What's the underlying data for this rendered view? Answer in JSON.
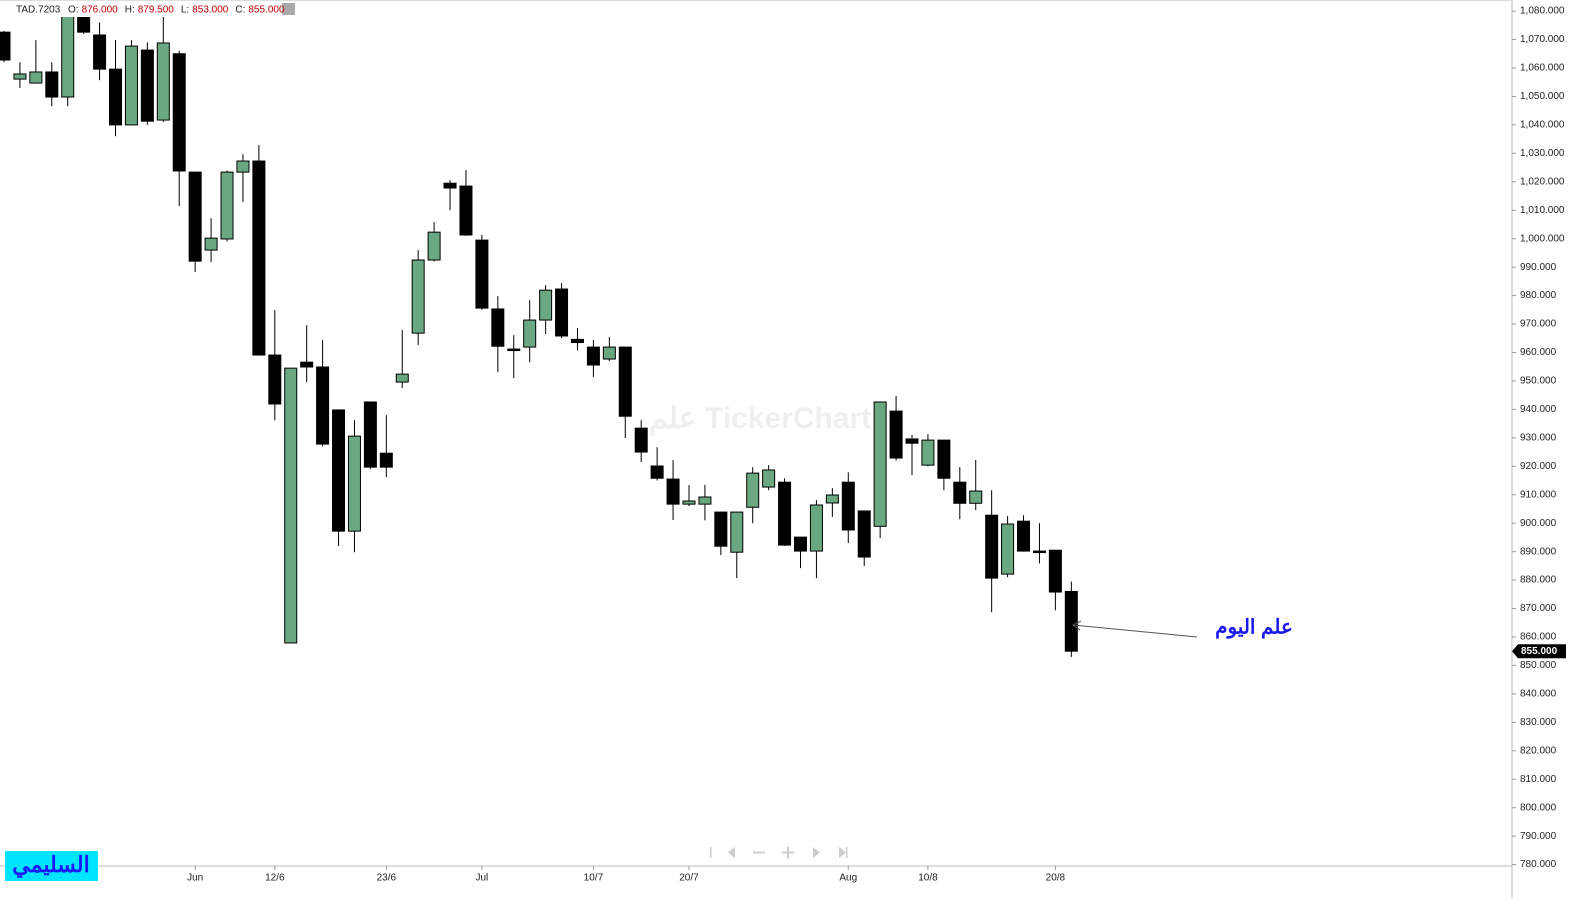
{
  "chart_data": {
    "type": "candlestick",
    "symbol": "TAD.7203",
    "ohlc_header": [
      {
        "key": "O:",
        "label": "876.000"
      },
      {
        "key": "H:",
        "label": "879.500"
      },
      {
        "key": "L:",
        "label": "853.000"
      },
      {
        "key": "C:",
        "label": "855.000"
      }
    ],
    "last_price_label": "855.000",
    "watermark": "علم TickerChart",
    "annotation": "علم اليوم",
    "badge": "السليمي",
    "up_color": "#6aa882",
    "down_color": "#000000",
    "ylim": [
      779.5,
      1083.9
    ],
    "yticks": [
      {
        "value": 780,
        "label": "780.000"
      },
      {
        "value": 790,
        "label": "790.000"
      },
      {
        "value": 800,
        "label": "800.000"
      },
      {
        "value": 810,
        "label": "810.000"
      },
      {
        "value": 820,
        "label": "820.000"
      },
      {
        "value": 830,
        "label": "830.000"
      },
      {
        "value": 840,
        "label": "840.000"
      },
      {
        "value": 850,
        "label": "850.000"
      },
      {
        "value": 860,
        "label": "860.000"
      },
      {
        "value": 870,
        "label": "870.000"
      },
      {
        "value": 880,
        "label": "880.000"
      },
      {
        "value": 890,
        "label": "890.000"
      },
      {
        "value": 900,
        "label": "900.000"
      },
      {
        "value": 910,
        "label": "910.000"
      },
      {
        "value": 920,
        "label": "920.000"
      },
      {
        "value": 930,
        "label": "930.000"
      },
      {
        "value": 940,
        "label": "940.000"
      },
      {
        "value": 950,
        "label": "950.000"
      },
      {
        "value": 960,
        "label": "960.000"
      },
      {
        "value": 970,
        "label": "970.000"
      },
      {
        "value": 980,
        "label": "980.000"
      },
      {
        "value": 990,
        "label": "990.000"
      },
      {
        "value": 1000,
        "label": "1,000.000"
      },
      {
        "value": 1010,
        "label": "1,010.000"
      },
      {
        "value": 1020,
        "label": "1,020.000"
      },
      {
        "value": 1030,
        "label": "1,030.000"
      },
      {
        "value": 1040,
        "label": "1,040.000"
      },
      {
        "value": 1050,
        "label": "1,050.000"
      },
      {
        "value": 1060,
        "label": "1,060.000"
      },
      {
        "value": 1070,
        "label": "1,070.000"
      },
      {
        "value": 1080,
        "label": "1,080.000"
      }
    ],
    "categories": [
      null,
      null,
      null,
      null,
      null,
      null,
      null,
      null,
      null,
      null,
      null,
      null,
      "Jun",
      null,
      null,
      null,
      null,
      "12/6",
      null,
      null,
      null,
      null,
      null,
      null,
      "23/6",
      null,
      null,
      null,
      null,
      null,
      "Jul",
      null,
      null,
      null,
      null,
      null,
      null,
      "10/7",
      null,
      null,
      null,
      null,
      null,
      "20/7",
      null,
      null,
      null,
      null,
      null,
      null,
      null,
      null,
      null,
      "Aug",
      null,
      null,
      null,
      null,
      "10/8",
      null,
      null,
      null,
      null,
      null,
      null,
      null,
      "20/8",
      null
    ],
    "open": [
      1072.6,
      1056.1,
      1054.7,
      1058.6,
      1049.8,
      1079.6,
      1071.6,
      1059.6,
      1040,
      1066.3,
      1041.7,
      1065,
      1023.4,
      996,
      999.9,
      1023.4,
      1027.3,
      959.1,
      857.9,
      956.6,
      954.9,
      939.8,
      897.2,
      942.6,
      924.6,
      949.6,
      966.8,
      992.5,
      1019.5,
      1018.5,
      999.5,
      975.3,
      961.2,
      961.9,
      971.4,
      982.3,
      964.6,
      961.9,
      957.7,
      961.9,
      933.4,
      920.1,
      915.5,
      906.7,
      906.7,
      903.9,
      889.8,
      905.6,
      912.7,
      914.4,
      895.1,
      890.2,
      907.1,
      914.4,
      904.3,
      898.9,
      939.4,
      929.6,
      920.4,
      929.2,
      914.4,
      907,
      902.8,
      882.1,
      900.7,
      890.2,
      890.5,
      876
    ],
    "high": [
      1073,
      1062,
      1069.8,
      1062,
      1081,
      1082,
      1076,
      1069.8,
      1069.8,
      1069,
      1078.6,
      1066,
      1023.4,
      1007.2,
      1024,
      1029.7,
      1032.9,
      974.9,
      954.5,
      969.6,
      964.4,
      940,
      936.2,
      942.6,
      938,
      967.9,
      996,
      1005.8,
      1020.6,
      1024.1,
      1001.3,
      979.8,
      966.1,
      978.4,
      983.7,
      984.4,
      968.6,
      964.4,
      965.4,
      962,
      936.2,
      926.7,
      922.2,
      913.4,
      913.5,
      904,
      904,
      919.7,
      920.4,
      915.8,
      895.1,
      908.1,
      912.3,
      917.9,
      904.3,
      942.6,
      944.7,
      931,
      931.3,
      929.2,
      919.7,
      922.2,
      911.6,
      902.5,
      902.8,
      900,
      890.5,
      879.5
    ],
    "low": [
      1062,
      1053,
      1054.7,
      1046.6,
      1046.6,
      1072,
      1055.7,
      1036,
      1040,
      1040,
      1041,
      1011.5,
      988.3,
      991.8,
      999,
      1012.9,
      959,
      936.2,
      857.9,
      949.6,
      927,
      892,
      889.8,
      919,
      916.2,
      947.5,
      962.6,
      992,
      1010,
      1001,
      975,
      953.1,
      951,
      956.6,
      966.5,
      965,
      960.8,
      951.4,
      957,
      929.9,
      921.5,
      915,
      901.1,
      906,
      901,
      888.8,
      880.7,
      900,
      911.6,
      892,
      884.2,
      880.7,
      902.2,
      893,
      884.9,
      894.8,
      922,
      916.9,
      920,
      911.6,
      901.4,
      904.6,
      868.7,
      881,
      890,
      885.9,
      869.4,
      853
    ],
    "close": [
      1062.8,
      1057.9,
      1058.6,
      1049.8,
      1080,
      1072.6,
      1059.6,
      1040,
      1067.7,
      1041.3,
      1068.8,
      1023.8,
      992.1,
      1000.2,
      1023.4,
      1027.3,
      959.1,
      941.9,
      954.5,
      954.9,
      927.8,
      897.2,
      930.6,
      919.7,
      919.7,
      952.4,
      992.5,
      1002.3,
      1017.8,
      1001.3,
      975.6,
      962.2,
      961,
      971.4,
      981.9,
      965.8,
      963.5,
      955.6,
      961.9,
      937.6,
      925,
      915.8,
      906.7,
      907.8,
      909.2,
      891.9,
      903.9,
      917.6,
      918.7,
      892.3,
      890.2,
      906.4,
      909.9,
      897.6,
      888.1,
      942.6,
      922.9,
      928.1,
      929.2,
      915.8,
      907,
      911.3,
      880.7,
      899.7,
      890.2,
      889.9,
      875.8,
      855
    ]
  }
}
